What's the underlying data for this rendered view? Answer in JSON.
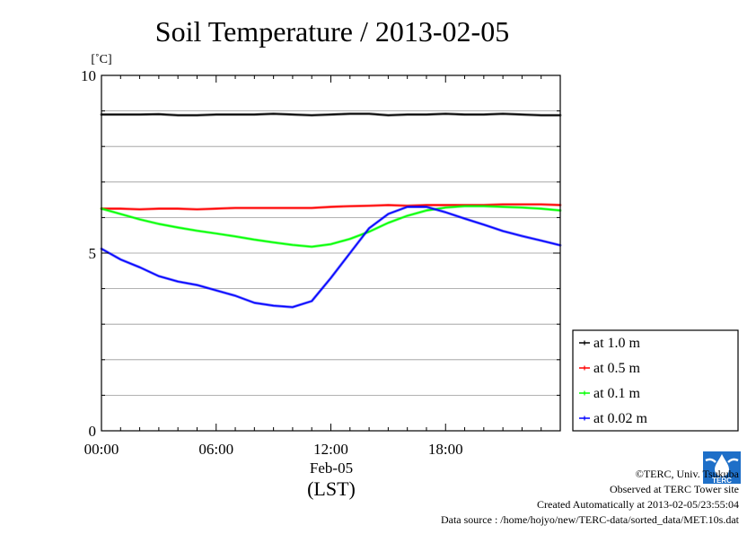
{
  "chart_data": {
    "type": "line",
    "title": "Soil Temperature / 2013-02-05",
    "ylabel": "[˚C]",
    "xlabel": "(LST)",
    "date_label": "Feb-05",
    "ylim": [
      0,
      10
    ],
    "xlim": [
      0,
      24
    ],
    "x_ticks": [
      {
        "value": 0,
        "label": "00:00"
      },
      {
        "value": 6,
        "label": "06:00"
      },
      {
        "value": 12,
        "label": "12:00"
      },
      {
        "value": 18,
        "label": "18:00"
      }
    ],
    "y_ticks": [
      {
        "value": 0,
        "label": "0"
      },
      {
        "value": 5,
        "label": "5"
      },
      {
        "value": 10,
        "label": "10"
      }
    ],
    "grid": "horizontal, every 1 ˚C",
    "legend_position": "right",
    "series": [
      {
        "name": "at 1.0 m",
        "color": "#000000",
        "x": [
          0,
          1,
          2,
          3,
          4,
          5,
          6,
          7,
          8,
          9,
          10,
          11,
          12,
          13,
          14,
          15,
          16,
          17,
          18,
          19,
          20,
          21,
          22,
          23,
          24
        ],
        "y": [
          8.9,
          8.9,
          8.9,
          8.91,
          8.88,
          8.88,
          8.9,
          8.9,
          8.9,
          8.92,
          8.9,
          8.88,
          8.9,
          8.92,
          8.92,
          8.88,
          8.9,
          8.9,
          8.92,
          8.9,
          8.9,
          8.92,
          8.9,
          8.88,
          8.88
        ]
      },
      {
        "name": "at 0.5 m",
        "color": "#ff0000",
        "x": [
          0,
          1,
          2,
          3,
          4,
          5,
          6,
          7,
          8,
          9,
          10,
          11,
          12,
          13,
          14,
          15,
          16,
          17,
          18,
          19,
          20,
          21,
          22,
          23,
          24
        ],
        "y": [
          6.25,
          6.25,
          6.23,
          6.25,
          6.25,
          6.23,
          6.25,
          6.27,
          6.27,
          6.27,
          6.27,
          6.27,
          6.3,
          6.32,
          6.33,
          6.35,
          6.33,
          6.35,
          6.35,
          6.35,
          6.35,
          6.37,
          6.37,
          6.37,
          6.35
        ]
      },
      {
        "name": "at 0.1 m",
        "color": "#00ff00",
        "x": [
          0,
          1,
          2,
          3,
          4,
          5,
          6,
          7,
          8,
          9,
          10,
          11,
          12,
          13,
          14,
          15,
          16,
          17,
          18,
          19,
          20,
          21,
          22,
          23,
          24
        ],
        "y": [
          6.25,
          6.1,
          5.95,
          5.82,
          5.72,
          5.63,
          5.55,
          5.47,
          5.38,
          5.3,
          5.23,
          5.18,
          5.25,
          5.4,
          5.6,
          5.85,
          6.05,
          6.2,
          6.28,
          6.32,
          6.32,
          6.3,
          6.28,
          6.25,
          6.2
        ]
      },
      {
        "name": "at 0.02 m",
        "color": "#0000ff",
        "x": [
          0,
          1,
          2,
          3,
          4,
          5,
          6,
          7,
          8,
          9,
          10,
          11,
          12,
          13,
          14,
          15,
          16,
          17,
          18,
          19,
          20,
          21,
          22,
          23,
          24
        ],
        "y": [
          5.12,
          4.82,
          4.6,
          4.35,
          4.2,
          4.1,
          3.95,
          3.8,
          3.6,
          3.52,
          3.48,
          3.65,
          4.3,
          5.0,
          5.7,
          6.1,
          6.3,
          6.3,
          6.15,
          5.97,
          5.8,
          5.62,
          5.48,
          5.35,
          5.22
        ]
      }
    ]
  },
  "footer": {
    "copyright": "©TERC, Univ. Tsukuba",
    "observed": "Observed at TERC Tower site",
    "created": "Created Automatically at 2013-02-05/23:55:04",
    "source": "Data source : /home/hojyo/new/TERC-data/sorted_data/MET.10s.dat",
    "logo_text": "TERC",
    "logo_color": "#1e6fc8"
  }
}
